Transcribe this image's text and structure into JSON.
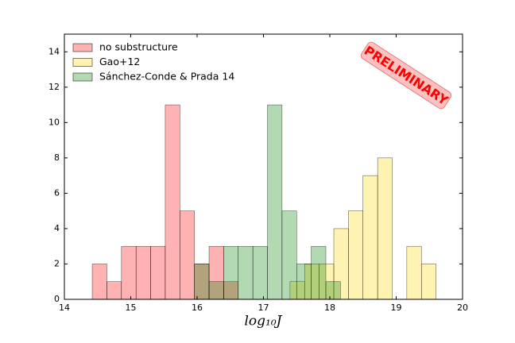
{
  "chart_data": {
    "type": "histogram",
    "xlabel": "log₁₀J",
    "annotation": "PRELIMINARY",
    "xlim": [
      14,
      20
    ],
    "xticks": [
      14,
      15,
      16,
      17,
      18,
      19,
      20
    ],
    "ylim": [
      0,
      15
    ],
    "yticks": [
      0,
      2,
      4,
      6,
      8,
      10,
      12,
      14
    ],
    "legend": "upper left",
    "series": [
      {
        "name": "no substructure",
        "color": "#ff0000",
        "bins": [
          14.42,
          14.64,
          14.86,
          15.08,
          15.3,
          15.52,
          15.74,
          15.96,
          16.18,
          16.4,
          16.62
        ],
        "values": [
          2,
          1,
          3,
          3,
          3,
          11,
          5,
          2,
          3,
          1
        ]
      },
      {
        "name": "Gao+12",
        "color": "#ffd700",
        "bins": [
          17.4,
          17.62,
          17.84,
          18.06,
          18.28,
          18.5,
          18.72,
          18.94,
          19.16,
          19.38,
          19.6
        ],
        "values": [
          1,
          2,
          2,
          4,
          5,
          7,
          8,
          0,
          3,
          2
        ]
      },
      {
        "name": "Sánchez-Conde & Prada 14",
        "color": "#008000",
        "bins": [
          15.96,
          16.18,
          16.4,
          16.62,
          16.84,
          17.06,
          17.28,
          17.5,
          17.72,
          17.94,
          18.16
        ],
        "values": [
          2,
          1,
          3,
          3,
          3,
          11,
          5,
          2,
          3,
          1
        ]
      }
    ]
  }
}
